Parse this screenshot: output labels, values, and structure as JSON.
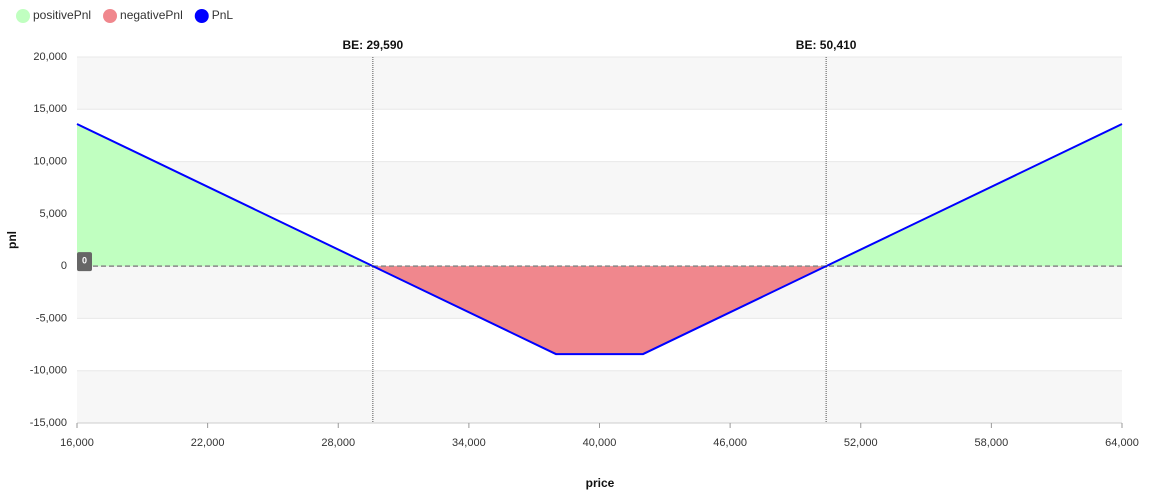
{
  "chart_data": {
    "type": "area-line",
    "x_label": "price",
    "y_label": "pnl",
    "x": [
      16000,
      29590,
      38000,
      42000,
      50410,
      64000
    ],
    "series": [
      {
        "name": "positivePnl",
        "color": "#c0ffc0",
        "kind": "area",
        "values": [
          13590,
          0,
          null,
          null,
          0,
          13590
        ]
      },
      {
        "name": "negativePnl",
        "color": "#f0878d",
        "kind": "area",
        "values": [
          null,
          0,
          -8410,
          -8410,
          0,
          null
        ]
      },
      {
        "name": "PnL",
        "color": "#0000ff",
        "kind": "line",
        "values": [
          13590,
          0,
          -8410,
          -8410,
          0,
          13590
        ]
      }
    ],
    "annotations": [
      {
        "x": 29590,
        "label": "BE: 29,590"
      },
      {
        "x": 50410,
        "label": "BE: 50,410"
      }
    ],
    "zero_line": 0,
    "xlim": [
      16000,
      64000
    ],
    "xticks": [
      {
        "value": 16000,
        "label": "16,000"
      },
      {
        "value": 22000,
        "label": "22,000"
      },
      {
        "value": 28000,
        "label": "28,000"
      },
      {
        "value": 34000,
        "label": "34,000"
      },
      {
        "value": 40000,
        "label": "40,000"
      },
      {
        "value": 46000,
        "label": "46,000"
      },
      {
        "value": 52000,
        "label": "52,000"
      },
      {
        "value": 58000,
        "label": "58,000"
      },
      {
        "value": 64000,
        "label": "64,000"
      }
    ],
    "ylim": [
      -15000,
      20000
    ],
    "yticks": [
      {
        "value": -15000,
        "label": "-15,000"
      },
      {
        "value": -10000,
        "label": "-10,000"
      },
      {
        "value": -5000,
        "label": "-5,000"
      },
      0,
      {
        "value": 5000,
        "label": "5,000"
      },
      {
        "value": 10000,
        "label": "10,000"
      },
      {
        "value": 15000,
        "label": "15,000"
      },
      {
        "value": 20000,
        "label": "20,000"
      }
    ],
    "grid": true
  }
}
